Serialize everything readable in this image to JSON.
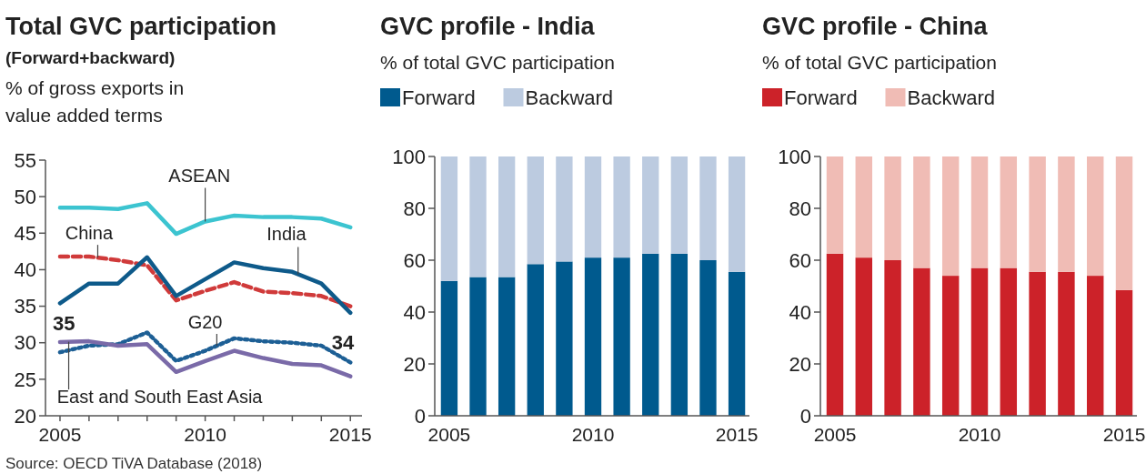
{
  "chart_data": [
    {
      "type": "line",
      "title": "Total GVC participation",
      "subtitle": "(Forward+backward)",
      "ylabel": "% of gross exports in value added terms",
      "x": [
        2005,
        2006,
        2007,
        2008,
        2009,
        2010,
        2011,
        2012,
        2013,
        2014,
        2015
      ],
      "xlim": [
        2004.5,
        2015.4
      ],
      "xticks": [
        2005,
        {
          "value": 2006,
          "label": null
        },
        {
          "value": 2007,
          "label": null
        },
        {
          "value": 2008,
          "label": null
        },
        {
          "value": 2009,
          "label": null
        },
        2010,
        {
          "value": 2011,
          "label": null
        },
        {
          "value": 2012,
          "label": null
        },
        {
          "value": 2013,
          "label": null
        },
        {
          "value": 2014,
          "label": null
        },
        2015
      ],
      "ylim": [
        20,
        55
      ],
      "yticks": [
        20,
        25,
        30,
        35,
        40,
        45,
        50,
        55
      ],
      "grid": false,
      "legend": false,
      "series": [
        {
          "name": "ASEAN",
          "color": "#3cc4d0",
          "line_style": "solid",
          "values": [
            48.5,
            48.5,
            48.3,
            49.1,
            44.9,
            46.6,
            47.4,
            47.2,
            47.2,
            47.0,
            45.8
          ]
        },
        {
          "name": "China",
          "color": "#d03a3a",
          "line_style": "dashed",
          "values": [
            41.8,
            41.8,
            41.3,
            40.6,
            35.8,
            37.1,
            38.3,
            37.0,
            36.8,
            36.4,
            35.0
          ]
        },
        {
          "name": "India",
          "color": "#0e5a8a",
          "line_style": "solid",
          "values": [
            35.4,
            38.1,
            38.1,
            41.7,
            36.4,
            38.7,
            41.0,
            40.2,
            39.7,
            38.1,
            34.1
          ]
        },
        {
          "name": "G20",
          "color": "#1d5f95",
          "line_style": "dotted",
          "values": [
            28.7,
            29.6,
            29.8,
            31.4,
            27.5,
            28.9,
            30.6,
            30.2,
            30.0,
            29.6,
            27.3
          ]
        },
        {
          "name": "East and South East Asia",
          "color": "#7a6aa8",
          "line_style": "solid",
          "values": [
            30.1,
            30.2,
            29.6,
            29.8,
            26.0,
            27.5,
            28.9,
            27.9,
            27.1,
            26.9,
            25.4
          ]
        }
      ],
      "annotations": [
        {
          "text": "35",
          "x": 2005,
          "y": 35.4
        },
        {
          "text": "34",
          "x": 2015,
          "y": 34.1
        },
        "Source: OECD TiVA Database (2018)"
      ]
    },
    {
      "type": "bar",
      "stacked": true,
      "title": "GVC profile - India",
      "ylabel": "% of total GVC participation",
      "categories": [
        "2005",
        null,
        null,
        null,
        null,
        "2010",
        null,
        null,
        null,
        null,
        "2015"
      ],
      "ylim": [
        0,
        100
      ],
      "yticks": [
        0,
        20,
        40,
        60,
        80,
        100
      ],
      "grid": false,
      "legend": "top left",
      "series": [
        {
          "name": "Forward",
          "color": "#005a8e",
          "values": [
            52,
            53.5,
            53.5,
            58.5,
            59.5,
            61,
            61,
            62.5,
            62.5,
            60,
            55.5
          ]
        },
        {
          "name": "Backward",
          "color": "#bccbe0",
          "values": [
            48,
            46.5,
            46.5,
            41.5,
            40.5,
            39,
            39,
            37.5,
            37.5,
            40,
            44.5
          ]
        }
      ]
    },
    {
      "type": "bar",
      "stacked": true,
      "title": "GVC profile - China",
      "ylabel": "% of total GVC participation",
      "categories": [
        "2005",
        null,
        null,
        null,
        null,
        "2010",
        null,
        null,
        null,
        null,
        "2015"
      ],
      "ylim": [
        0,
        100
      ],
      "yticks": [
        0,
        20,
        40,
        60,
        80,
        100
      ],
      "grid": false,
      "legend": "top left",
      "series": [
        {
          "name": "Forward",
          "color": "#cc2229",
          "values": [
            62.5,
            61,
            60,
            57,
            54,
            57,
            57,
            55.5,
            55.5,
            54,
            48.5
          ]
        },
        {
          "name": "Backward",
          "color": "#f0bcb5",
          "values": [
            37.5,
            39,
            40,
            43,
            46,
            43,
            43,
            44.5,
            44.5,
            46,
            51.5
          ]
        }
      ]
    }
  ]
}
